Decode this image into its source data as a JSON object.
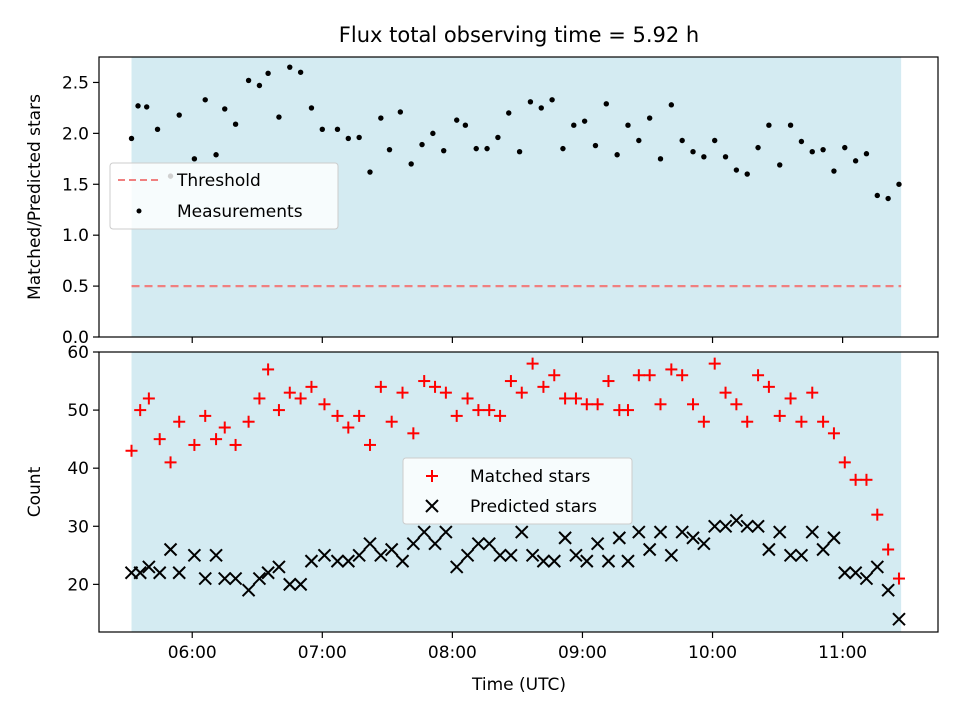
{
  "title": "Flux total observing time = 5.92 h",
  "chart_data": [
    {
      "type": "scatter",
      "panel": "top",
      "title": "Flux total observing time = 5.92 h",
      "ylabel": "Matched/Predicted stars",
      "xlabel": "",
      "xlim": [
        "05:17",
        "11:44"
      ],
      "ylim": [
        0,
        2.75
      ],
      "yticks": [
        "0.0",
        "0.5",
        "1.0",
        "1.5",
        "2.0",
        "2.5"
      ],
      "shaded_span": [
        "05:32",
        "11:27"
      ],
      "shade_color": "#add8e6",
      "threshold": {
        "name": "Threshold",
        "value": 0.5,
        "color": "#f08080",
        "style": "dashed"
      },
      "legend": {
        "position": "center-left",
        "entries": [
          "Threshold",
          "Measurements"
        ]
      },
      "series": [
        {
          "name": "Measurements",
          "color": "#000000",
          "marker": "dot",
          "points": [
            [
              "05:32",
              1.95
            ],
            [
              "05:35",
              2.27
            ],
            [
              "05:39",
              2.26
            ],
            [
              "05:44",
              2.04
            ],
            [
              "05:50",
              1.58
            ],
            [
              "05:54",
              2.18
            ],
            [
              "06:01",
              1.75
            ],
            [
              "06:06",
              2.33
            ],
            [
              "06:11",
              1.79
            ],
            [
              "06:15",
              2.24
            ],
            [
              "06:20",
              2.09
            ],
            [
              "06:26",
              2.52
            ],
            [
              "06:31",
              2.47
            ],
            [
              "06:35",
              2.59
            ],
            [
              "06:40",
              2.16
            ],
            [
              "06:45",
              2.65
            ],
            [
              "06:50",
              2.6
            ],
            [
              "06:55",
              2.25
            ],
            [
              "07:00",
              2.04
            ],
            [
              "07:07",
              2.04
            ],
            [
              "07:12",
              1.95
            ],
            [
              "07:17",
              1.96
            ],
            [
              "07:22",
              1.62
            ],
            [
              "07:27",
              2.15
            ],
            [
              "07:31",
              1.84
            ],
            [
              "07:36",
              2.21
            ],
            [
              "07:41",
              1.7
            ],
            [
              "07:46",
              1.89
            ],
            [
              "07:51",
              2.0
            ],
            [
              "07:56",
              1.83
            ],
            [
              "08:02",
              2.13
            ],
            [
              "08:06",
              2.08
            ],
            [
              "08:11",
              1.85
            ],
            [
              "08:16",
              1.85
            ],
            [
              "08:21",
              1.96
            ],
            [
              "08:26",
              2.2
            ],
            [
              "08:31",
              1.82
            ],
            [
              "08:36",
              2.31
            ],
            [
              "08:41",
              2.25
            ],
            [
              "08:46",
              2.33
            ],
            [
              "08:51",
              1.85
            ],
            [
              "08:56",
              2.08
            ],
            [
              "09:01",
              2.12
            ],
            [
              "09:06",
              1.88
            ],
            [
              "09:11",
              2.29
            ],
            [
              "09:16",
              1.79
            ],
            [
              "09:21",
              2.08
            ],
            [
              "09:26",
              1.93
            ],
            [
              "09:31",
              2.15
            ],
            [
              "09:36",
              1.75
            ],
            [
              "09:41",
              2.28
            ],
            [
              "09:46",
              1.93
            ],
            [
              "09:51",
              1.82
            ],
            [
              "09:56",
              1.77
            ],
            [
              "10:01",
              1.93
            ],
            [
              "10:06",
              1.77
            ],
            [
              "10:11",
              1.64
            ],
            [
              "10:16",
              1.6
            ],
            [
              "10:21",
              1.86
            ],
            [
              "10:26",
              2.08
            ],
            [
              "10:31",
              1.69
            ],
            [
              "10:36",
              2.08
            ],
            [
              "10:41",
              1.92
            ],
            [
              "10:46",
              1.82
            ],
            [
              "10:51",
              1.84
            ],
            [
              "10:56",
              1.63
            ],
            [
              "11:01",
              1.86
            ],
            [
              "11:06",
              1.73
            ],
            [
              "11:11",
              1.8
            ],
            [
              "11:16",
              1.39
            ],
            [
              "11:21",
              1.36
            ],
            [
              "11:26",
              1.5
            ]
          ]
        }
      ]
    },
    {
      "type": "scatter",
      "panel": "bottom",
      "title": "",
      "xlabel": "Time (UTC)",
      "ylabel": "Count",
      "xlim": [
        "05:17",
        "11:44"
      ],
      "ylim": [
        11.8,
        60
      ],
      "yticks": [
        "20",
        "30",
        "40",
        "50",
        "60"
      ],
      "xticks": [
        "06:00",
        "07:00",
        "08:00",
        "09:00",
        "10:00",
        "11:00"
      ],
      "shaded_span": [
        "05:32",
        "11:27"
      ],
      "shade_color": "#add8e6",
      "legend": {
        "position": "center",
        "entries": [
          "Matched stars",
          "Predicted stars"
        ]
      },
      "series": [
        {
          "name": "Matched stars",
          "color": "#ff0000",
          "marker": "plus",
          "points": [
            [
              "05:32",
              43
            ],
            [
              "05:36",
              50
            ],
            [
              "05:40",
              52
            ],
            [
              "05:45",
              45
            ],
            [
              "05:50",
              41
            ],
            [
              "05:54",
              48
            ],
            [
              "06:01",
              44
            ],
            [
              "06:06",
              49
            ],
            [
              "06:11",
              45
            ],
            [
              "06:15",
              47
            ],
            [
              "06:20",
              44
            ],
            [
              "06:26",
              48
            ],
            [
              "06:31",
              52
            ],
            [
              "06:35",
              57
            ],
            [
              "06:40",
              50
            ],
            [
              "06:45",
              53
            ],
            [
              "06:50",
              52
            ],
            [
              "06:55",
              54
            ],
            [
              "07:01",
              51
            ],
            [
              "07:07",
              49
            ],
            [
              "07:12",
              47
            ],
            [
              "07:17",
              49
            ],
            [
              "07:22",
              44
            ],
            [
              "07:27",
              54
            ],
            [
              "07:32",
              48
            ],
            [
              "07:37",
              53
            ],
            [
              "07:42",
              46
            ],
            [
              "07:47",
              55
            ],
            [
              "07:52",
              54
            ],
            [
              "07:57",
              53
            ],
            [
              "08:02",
              49
            ],
            [
              "08:07",
              52
            ],
            [
              "08:12",
              50
            ],
            [
              "08:17",
              50
            ],
            [
              "08:22",
              49
            ],
            [
              "08:27",
              55
            ],
            [
              "08:32",
              53
            ],
            [
              "08:37",
              58
            ],
            [
              "08:42",
              54
            ],
            [
              "08:47",
              56
            ],
            [
              "08:52",
              52
            ],
            [
              "08:57",
              52
            ],
            [
              "09:02",
              51
            ],
            [
              "09:07",
              51
            ],
            [
              "09:12",
              55
            ],
            [
              "09:17",
              50
            ],
            [
              "09:21",
              50
            ],
            [
              "09:26",
              56
            ],
            [
              "09:31",
              56
            ],
            [
              "09:36",
              51
            ],
            [
              "09:41",
              57
            ],
            [
              "09:46",
              56
            ],
            [
              "09:51",
              51
            ],
            [
              "09:56",
              48
            ],
            [
              "10:01",
              58
            ],
            [
              "10:06",
              53
            ],
            [
              "10:11",
              51
            ],
            [
              "10:16",
              48
            ],
            [
              "10:21",
              56
            ],
            [
              "10:26",
              54
            ],
            [
              "10:31",
              49
            ],
            [
              "10:36",
              52
            ],
            [
              "10:41",
              48
            ],
            [
              "10:46",
              53
            ],
            [
              "10:51",
              48
            ],
            [
              "10:56",
              46
            ],
            [
              "11:01",
              41
            ],
            [
              "11:06",
              38
            ],
            [
              "11:11",
              38
            ],
            [
              "11:16",
              32
            ],
            [
              "11:21",
              26
            ],
            [
              "11:26",
              21
            ]
          ]
        },
        {
          "name": "Predicted stars",
          "color": "#000000",
          "marker": "x",
          "points": [
            [
              "05:32",
              22
            ],
            [
              "05:36",
              22
            ],
            [
              "05:40",
              23
            ],
            [
              "05:45",
              22
            ],
            [
              "05:50",
              26
            ],
            [
              "05:54",
              22
            ],
            [
              "06:01",
              25
            ],
            [
              "06:06",
              21
            ],
            [
              "06:11",
              25
            ],
            [
              "06:15",
              21
            ],
            [
              "06:20",
              21
            ],
            [
              "06:26",
              19
            ],
            [
              "06:31",
              21
            ],
            [
              "06:35",
              22
            ],
            [
              "06:40",
              23
            ],
            [
              "06:45",
              20
            ],
            [
              "06:50",
              20
            ],
            [
              "06:55",
              24
            ],
            [
              "07:01",
              25
            ],
            [
              "07:07",
              24
            ],
            [
              "07:12",
              24
            ],
            [
              "07:17",
              25
            ],
            [
              "07:22",
              27
            ],
            [
              "07:27",
              25
            ],
            [
              "07:32",
              26
            ],
            [
              "07:37",
              24
            ],
            [
              "07:42",
              27
            ],
            [
              "07:47",
              29
            ],
            [
              "07:52",
              27
            ],
            [
              "07:57",
              29
            ],
            [
              "08:02",
              23
            ],
            [
              "08:07",
              25
            ],
            [
              "08:12",
              27
            ],
            [
              "08:17",
              27
            ],
            [
              "08:22",
              25
            ],
            [
              "08:27",
              25
            ],
            [
              "08:32",
              29
            ],
            [
              "08:37",
              25
            ],
            [
              "08:42",
              24
            ],
            [
              "08:47",
              24
            ],
            [
              "08:52",
              28
            ],
            [
              "08:57",
              25
            ],
            [
              "09:02",
              24
            ],
            [
              "09:07",
              27
            ],
            [
              "09:12",
              24
            ],
            [
              "09:17",
              28
            ],
            [
              "09:21",
              24
            ],
            [
              "09:26",
              29
            ],
            [
              "09:31",
              26
            ],
            [
              "09:36",
              29
            ],
            [
              "09:41",
              25
            ],
            [
              "09:46",
              29
            ],
            [
              "09:51",
              28
            ],
            [
              "09:56",
              27
            ],
            [
              "10:01",
              30
            ],
            [
              "10:06",
              30
            ],
            [
              "10:11",
              31
            ],
            [
              "10:16",
              30
            ],
            [
              "10:21",
              30
            ],
            [
              "10:26",
              26
            ],
            [
              "10:31",
              29
            ],
            [
              "10:36",
              25
            ],
            [
              "10:41",
              25
            ],
            [
              "10:46",
              29
            ],
            [
              "10:51",
              26
            ],
            [
              "10:56",
              28
            ],
            [
              "11:01",
              22
            ],
            [
              "11:06",
              22
            ],
            [
              "11:11",
              21
            ],
            [
              "11:16",
              23
            ],
            [
              "11:21",
              19
            ],
            [
              "11:26",
              14
            ]
          ]
        }
      ]
    }
  ]
}
